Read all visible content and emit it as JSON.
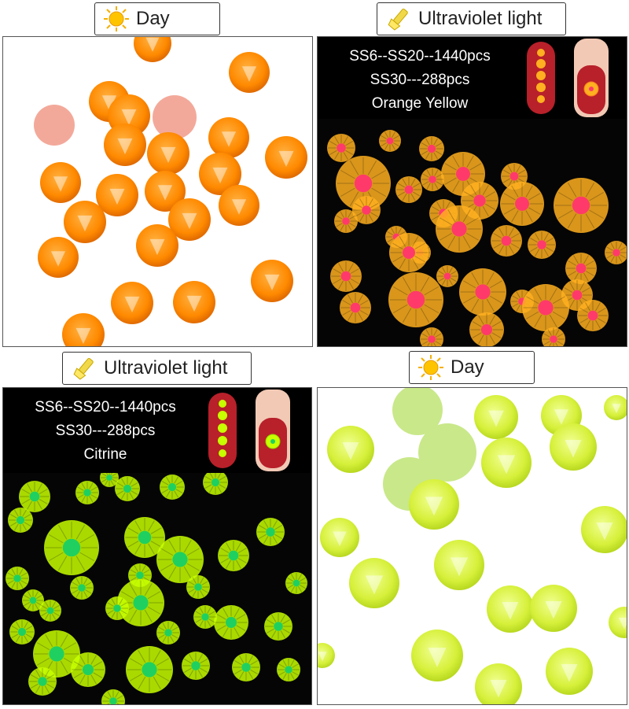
{
  "panels": {
    "top_left": {
      "label": "Day",
      "icon": "sun-icon"
    },
    "top_right": {
      "label": "Ultraviolet light",
      "icon": "uv-flashlight-icon",
      "info_lines": [
        "SS6--SS20--1440pcs",
        "SS30---288pcs",
        "Orange Yellow"
      ]
    },
    "bottom_left": {
      "label": "Ultraviolet light",
      "icon": "uv-flashlight-icon",
      "info_lines": [
        "SS6--SS20--1440pcs",
        "SS30---288pcs",
        "Citrine"
      ]
    },
    "bottom_right": {
      "label": "Day",
      "icon": "sun-icon"
    }
  },
  "colors": {
    "orange": "#ff8a00",
    "orange_uv": "#ffb020",
    "citrine": "#d6f03a",
    "citrine_uv": "#c8ff00",
    "uv_center_orange": "#ff3a6a",
    "uv_center_citrine": "#1fd060"
  }
}
